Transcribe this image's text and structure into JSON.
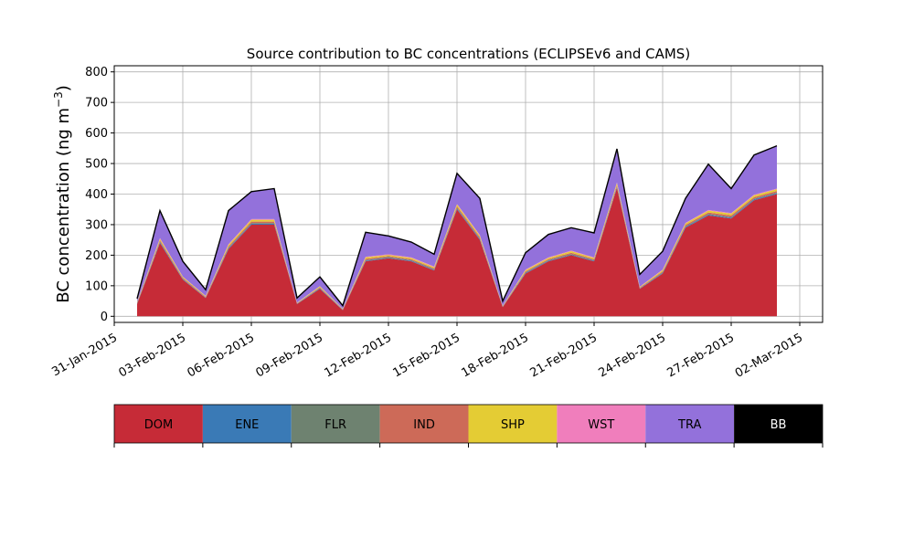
{
  "chart_data": {
    "type": "area",
    "stacked": true,
    "title": "Source contribution to BC concentrations (ECLIPSEv6 and CAMS)",
    "xlabel": "",
    "ylabel": "BC concentration (ng m",
    "ylabel_sup": "−3",
    "ylabel_close": ")",
    "xlim": [
      "2015-01-31",
      "2015-03-03"
    ],
    "ylim": [
      -20,
      820
    ],
    "yticks": [
      0,
      100,
      200,
      300,
      400,
      500,
      600,
      700,
      800
    ],
    "xticks": [
      "31-Jan-2015",
      "03-Feb-2015",
      "06-Feb-2015",
      "09-Feb-2015",
      "12-Feb-2015",
      "15-Feb-2015",
      "18-Feb-2015",
      "21-Feb-2015",
      "24-Feb-2015",
      "27-Feb-2015",
      "02-Mar-2015"
    ],
    "grid": true,
    "legend_placement": "bottom color bar",
    "dates": [
      "2015-02-01",
      "2015-02-02",
      "2015-02-03",
      "2015-02-04",
      "2015-02-05",
      "2015-02-06",
      "2015-02-07",
      "2015-02-08",
      "2015-02-09",
      "2015-02-10",
      "2015-02-11",
      "2015-02-12",
      "2015-02-13",
      "2015-02-14",
      "2015-02-15",
      "2015-02-16",
      "2015-02-17",
      "2015-02-18",
      "2015-02-19",
      "2015-02-20",
      "2015-02-21",
      "2015-02-22",
      "2015-02-23",
      "2015-02-24",
      "2015-02-25",
      "2015-02-26",
      "2015-02-27",
      "2015-02-28",
      "2015-03-01"
    ],
    "series": [
      {
        "name": "DOM",
        "color": "#c62b37",
        "values": [
          40,
          240,
          120,
          60,
          220,
          300,
          300,
          40,
          90,
          20,
          180,
          190,
          180,
          150,
          350,
          250,
          30,
          140,
          180,
          200,
          180,
          420,
          90,
          140,
          290,
          330,
          320,
          380,
          400
        ]
      },
      {
        "name": "ENE",
        "color": "#3a7ab6",
        "values": [
          2,
          3,
          2,
          1,
          3,
          3,
          3,
          1,
          2,
          1,
          2,
          2,
          2,
          2,
          3,
          3,
          1,
          2,
          2,
          2,
          2,
          3,
          1,
          2,
          3,
          3,
          3,
          3,
          3
        ]
      },
      {
        "name": "FLR",
        "color": "#6e8270",
        "values": [
          1,
          2,
          1,
          1,
          2,
          2,
          2,
          1,
          1,
          1,
          2,
          2,
          2,
          2,
          2,
          2,
          1,
          2,
          2,
          2,
          2,
          2,
          1,
          2,
          2,
          2,
          2,
          2,
          2
        ]
      },
      {
        "name": "IND",
        "color": "#cd6a58",
        "values": [
          2,
          4,
          3,
          2,
          4,
          5,
          5,
          1,
          2,
          1,
          4,
          3,
          3,
          3,
          5,
          4,
          1,
          3,
          3,
          4,
          3,
          5,
          2,
          3,
          4,
          5,
          5,
          5,
          5
        ]
      },
      {
        "name": "SHP",
        "color": "#e4cc34",
        "values": [
          2,
          5,
          3,
          2,
          5,
          6,
          6,
          1,
          3,
          1,
          5,
          4,
          4,
          4,
          6,
          5,
          1,
          4,
          4,
          5,
          4,
          6,
          2,
          4,
          5,
          6,
          6,
          6,
          6
        ]
      },
      {
        "name": "WST",
        "color": "#f07ebc",
        "values": [
          1,
          2,
          1,
          1,
          2,
          2,
          2,
          1,
          1,
          1,
          2,
          2,
          2,
          2,
          2,
          2,
          1,
          2,
          2,
          2,
          2,
          2,
          1,
          2,
          2,
          2,
          2,
          2,
          2
        ]
      },
      {
        "name": "TRA",
        "color": "#9371db",
        "values": [
          10,
          90,
          50,
          20,
          110,
          90,
          100,
          15,
          30,
          10,
          80,
          60,
          50,
          40,
          100,
          120,
          15,
          55,
          75,
          75,
          80,
          110,
          40,
          60,
          80,
          150,
          80,
          130,
          140
        ]
      },
      {
        "name": "BB",
        "color": "#000000",
        "values": [
          0,
          0,
          0,
          0,
          0,
          0,
          0,
          0,
          0,
          0,
          0,
          0,
          0,
          0,
          0,
          0,
          0,
          0,
          0,
          0,
          0,
          0,
          0,
          0,
          0,
          0,
          0,
          0,
          0
        ]
      }
    ]
  }
}
